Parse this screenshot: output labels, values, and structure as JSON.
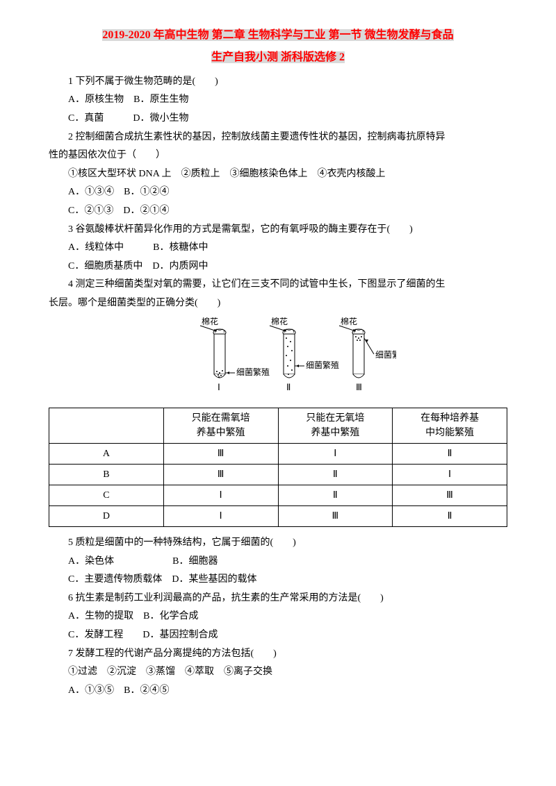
{
  "title": {
    "line1": "2019-2020 年高中生物 第二章 生物科学与工业 第一节 微生物发酵与食品",
    "line2": "生产自我小测 浙科版选修 2",
    "color": "#ff0000",
    "highlight_bg": "#d9d9d9"
  },
  "q1": {
    "stem": "1 下列不属于微生物范畴的是(　　)",
    "optA": "A．原核生物　B．原生生物",
    "optC": "C．真菌　　　D．微小生物"
  },
  "q2": {
    "stem1": "2 控制细菌合成抗生素性状的基因，控制放线菌主要遗传性状的基因，控制病毒抗原特异",
    "stem2": "性的基因依次位于（　　）",
    "circled": "①核区大型环状 DNA 上　②质粒上　③细胞核染色体上　④衣壳内核酸上",
    "optA": "A．①③④　B．①②④",
    "optC": "C．②①③　D．②①④"
  },
  "q3": {
    "stem": "3 谷氨酸棒状杆菌异化作用的方式是需氧型，它的有氧呼吸的酶主要存在于(　　)",
    "optA": "A．线粒体中　　　B．核糖体中",
    "optC": "C．细胞质基质中　D．内质网中"
  },
  "q4": {
    "stem1": "4 测定三种细菌类型对氧的需要，让它们在三支不同的试管中生长，下图显示了细菌的生",
    "stem2": "长层。哪个是细菌类型的正确分类(　　)",
    "diagram_labels": {
      "cotton": "棉花",
      "bacteria": "细菌繁殖",
      "roman1": "Ⅰ",
      "roman2": "Ⅱ",
      "roman3": "Ⅲ"
    }
  },
  "table4": {
    "header": [
      "",
      "只能在需氧培\n养基中繁殖",
      "只能在无氧培\n养基中繁殖",
      "在每种培养基\n中均能繁殖"
    ],
    "rows": [
      [
        "A",
        "Ⅲ",
        "Ⅰ",
        "Ⅱ"
      ],
      [
        "B",
        "Ⅲ",
        "Ⅱ",
        "Ⅰ"
      ],
      [
        "C",
        "Ⅰ",
        "Ⅱ",
        "Ⅲ"
      ],
      [
        "D",
        "Ⅰ",
        "Ⅲ",
        "Ⅱ"
      ]
    ]
  },
  "q5": {
    "stem": "5 质粒是细菌中的一种特殊结构，它属于细菌的(　　)",
    "optA": "A．染色体　　　　　　B．细胞器",
    "optC": "C．主要遗传物质载体　D．某些基因的载体"
  },
  "q6": {
    "stem": "6 抗生素是制药工业利润最高的产品，抗生素的生产常采用的方法是(　　)",
    "optA": "A．生物的提取　B．化学合成",
    "optC": "C．发酵工程　　D．基因控制合成"
  },
  "q7": {
    "stem": "7 发酵工程的代谢产品分离提纯的方法包括(　　)",
    "circled": "①过滤　②沉淀　③蒸馏　④萃取　⑤离子交换",
    "optA": "A．①③⑤　B．②④⑤"
  }
}
